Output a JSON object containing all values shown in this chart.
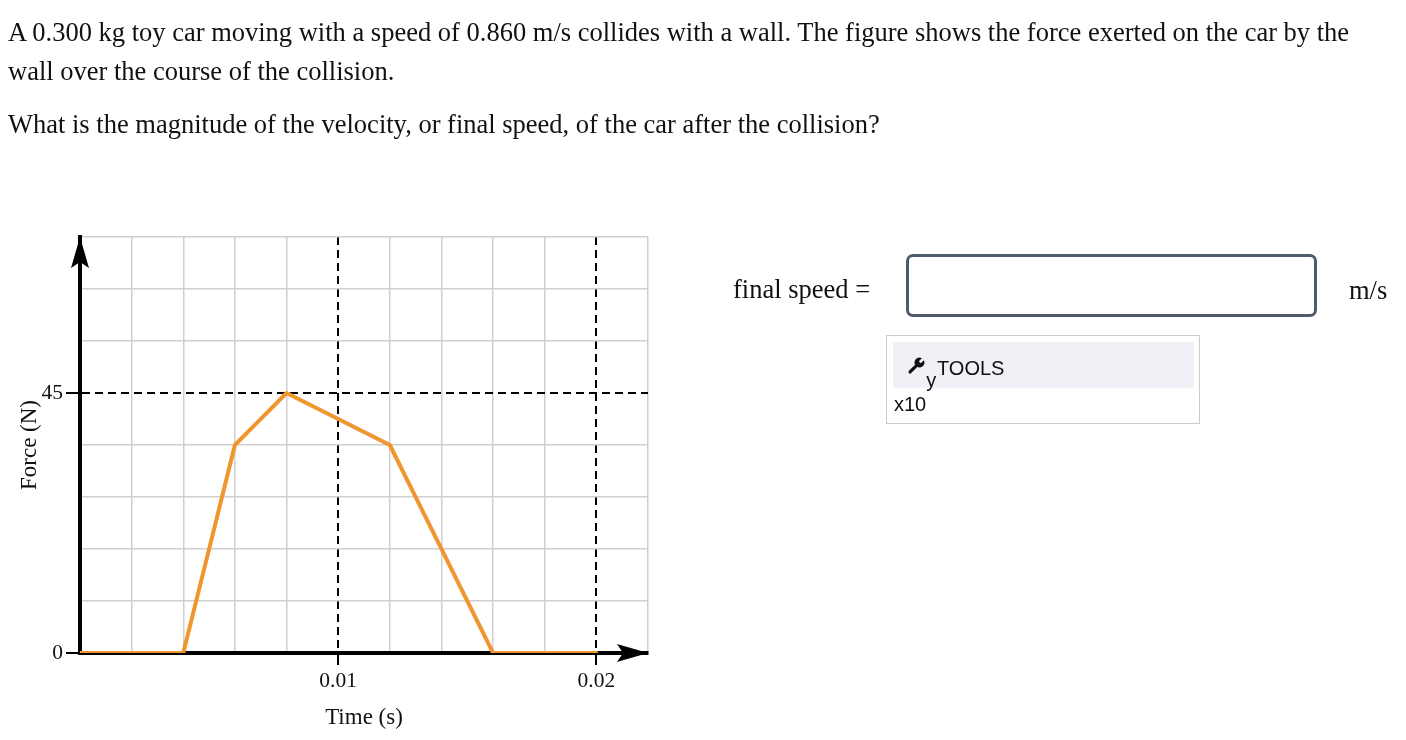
{
  "chart_data": {
    "type": "line",
    "title": "A 0.300 kg toy car moving with a speed of 0.860 m/s collides with a wall. The figure shows the force exerted on the car by the wall over the course of the collision.",
    "subtitle": "What is the magnitude of the velocity, or final speed, of the car after the collision?",
    "xlabel": "Time (s)",
    "ylabel": "Force (N)",
    "x": [
      0,
      0.004,
      0.006,
      0.008,
      0.012,
      0.016,
      0.02
    ],
    "series": [
      {
        "color": "#ef962e",
        "values": [
          0,
          0,
          36,
          45,
          36,
          0,
          0
        ]
      }
    ],
    "xlim": [
      0,
      0.022
    ],
    "ylim": [
      0,
      72
    ],
    "xticks": [
      {
        "value": 0,
        "label": null
      },
      {
        "value": 0.002,
        "label": null
      },
      {
        "value": 0.004,
        "label": null
      },
      {
        "value": 0.006,
        "label": null
      },
      {
        "value": 0.008,
        "label": null
      },
      0.01,
      {
        "value": 0.012,
        "label": null
      },
      {
        "value": 0.014,
        "label": null
      },
      {
        "value": 0.016,
        "label": null
      },
      {
        "value": 0.018,
        "label": null
      },
      0.02,
      {
        "value": 0.022,
        "label": null
      }
    ],
    "yticks": [
      0,
      {
        "value": 9,
        "label": null
      },
      {
        "value": 18,
        "label": null
      },
      {
        "value": 27,
        "label": null
      },
      {
        "value": 36,
        "label": null
      },
      45,
      {
        "value": 54,
        "label": null
      },
      {
        "value": 63,
        "label": null
      },
      {
        "value": 72,
        "label": null
      }
    ],
    "grid": true,
    "marker": "none",
    "line_style": "solid",
    "annotations": [
      "final speed =",
      "m/s",
      "TOOLS",
      "x10$^{y}$"
    ]
  }
}
